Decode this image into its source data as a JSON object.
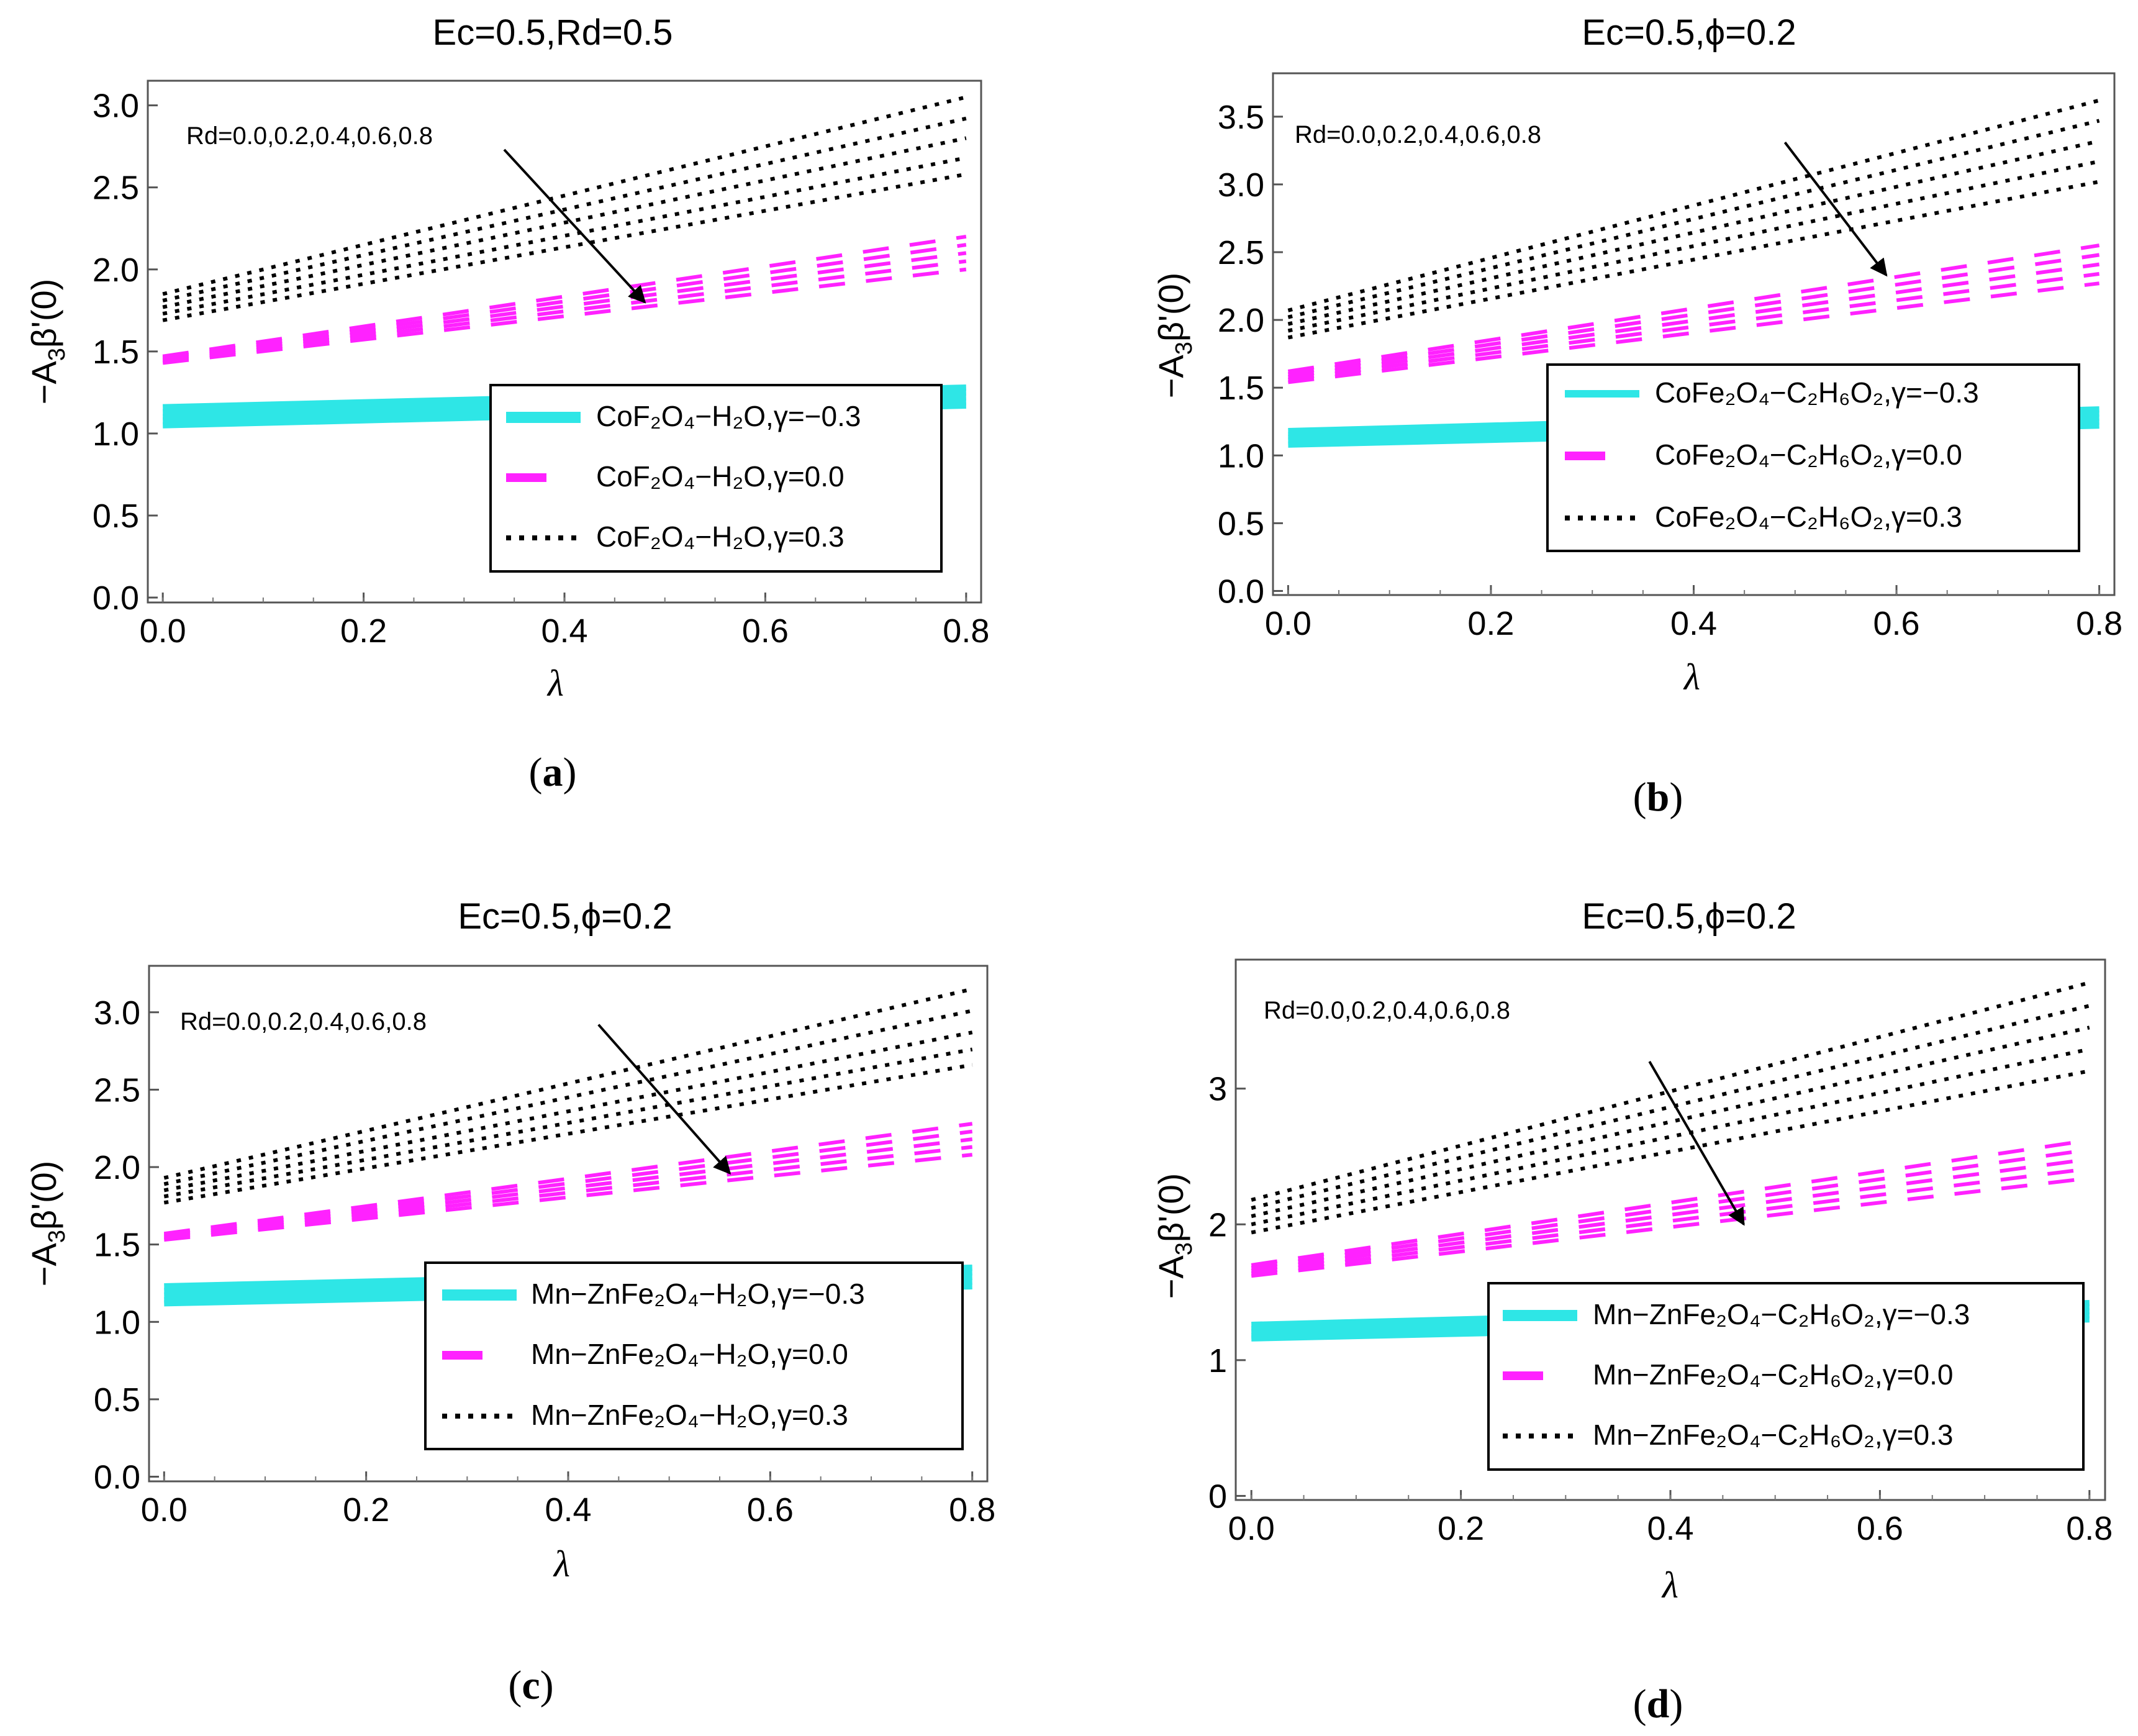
{
  "colors": {
    "cyan": "#2ee6e6",
    "magenta": "#ff22ff",
    "black": "#000000",
    "frame": "#555555"
  },
  "chart_data": [
    {
      "panel": "a",
      "caption_letter": "a",
      "type": "line",
      "title": "Ec=0.5,Rd=0.5",
      "xlabel": "λ",
      "ylabel_main": "−A",
      "ylabel_sub": "3",
      "ylabel_rest": "β'(0)",
      "xlim": [
        0,
        0.8
      ],
      "ylim": [
        -0.03,
        3.15
      ],
      "xticks": [
        0,
        0.2,
        0.4,
        0.6,
        0.8
      ],
      "xtick_labels": [
        "0.0",
        "0.2",
        "0.4",
        "0.6",
        "0.8"
      ],
      "yticks": [
        0,
        0.5,
        1,
        1.5,
        2,
        2.5,
        3
      ],
      "ytick_labels": [
        "0.0",
        "0.5",
        "1.0",
        "1.5",
        "2.0",
        "2.5",
        "3.0"
      ],
      "annotation": "Rd=0.0,0.2,0.4,0.6,0.8",
      "arrow": {
        "from": [
          0.34,
          2.73
        ],
        "to": [
          0.48,
          1.8
        ]
      },
      "legend_placement": "bottom-right",
      "legend": [
        {
          "style": "solid",
          "label": "CoF₂O₄−H₂O,γ=−0.3"
        },
        {
          "style": "dashed",
          "label": "CoF₂O₄−H₂O,γ=0.0"
        },
        {
          "style": "dotted",
          "label": "CoF₂O₄−H₂O,γ=0.3"
        }
      ],
      "rd_values": [
        0.0,
        0.2,
        0.4,
        0.6,
        0.8
      ],
      "series": [
        {
          "name": "γ=−0.3",
          "style": "solid",
          "x": [
            0,
            0.8
          ],
          "rd_curves": [
            [
              1.16,
              1.28
            ],
            [
              1.13,
              1.25
            ],
            [
              1.1,
              1.22
            ],
            [
              1.08,
              1.19
            ],
            [
              1.05,
              1.17
            ]
          ]
        },
        {
          "name": "γ=0.0",
          "style": "dashed",
          "x": [
            0,
            0.8
          ],
          "rd_curves": [
            [
              1.47,
              2.2
            ],
            [
              1.46,
              2.15
            ],
            [
              1.45,
              2.1
            ],
            [
              1.44,
              2.05
            ],
            [
              1.43,
              2.0
            ]
          ]
        },
        {
          "name": "γ=0.3",
          "style": "dotted",
          "x": [
            0,
            0.8
          ],
          "rd_curves": [
            [
              1.85,
              3.05
            ],
            [
              1.81,
              2.92
            ],
            [
              1.77,
              2.8
            ],
            [
              1.73,
              2.68
            ],
            [
              1.69,
              2.58
            ]
          ]
        }
      ]
    },
    {
      "panel": "b",
      "caption_letter": "b",
      "type": "line",
      "title": "Ec=0.5,ϕ=0.2",
      "xlabel": "λ",
      "ylabel_main": "−A",
      "ylabel_sub": "3",
      "ylabel_rest": "β'(0)",
      "xlim": [
        0,
        0.8
      ],
      "ylim": [
        -0.03,
        3.82
      ],
      "xticks": [
        0,
        0.2,
        0.4,
        0.6,
        0.8
      ],
      "xtick_labels": [
        "0.0",
        "0.2",
        "0.4",
        "0.6",
        "0.8"
      ],
      "yticks": [
        0,
        0.5,
        1,
        1.5,
        2,
        2.5,
        3,
        3.5
      ],
      "ytick_labels": [
        "0.0",
        "0.5",
        "1.0",
        "1.5",
        "2.0",
        "2.5",
        "3.0",
        "3.5"
      ],
      "annotation": "Rd=0.0,0.2,0.4,0.6,0.8",
      "arrow": {
        "from": [
          0.49,
          3.31
        ],
        "to": [
          0.59,
          2.33
        ]
      },
      "legend_placement": "bottom-right",
      "legend": [
        {
          "style": "solid",
          "label": "CoFe₂O₄−C₂H₆O₂,γ=−0.3"
        },
        {
          "style": "dashed",
          "label": "CoFe₂O₄−C₂H₆O₂,γ=0.0"
        },
        {
          "style": "dotted",
          "label": "CoFe₂O₄−C₂H₆O₂,γ=0.3"
        }
      ],
      "rd_values": [
        0.0,
        0.2,
        0.4,
        0.6,
        0.8
      ],
      "series": [
        {
          "name": "γ=−0.3",
          "style": "solid",
          "x": [
            0,
            0.8
          ],
          "rd_curves": [
            [
              1.18,
              1.34
            ],
            [
              1.15,
              1.31
            ],
            [
              1.13,
              1.28
            ],
            [
              1.11,
              1.25
            ],
            [
              1.08,
              1.22
            ]
          ]
        },
        {
          "name": "γ=0.0",
          "style": "dashed",
          "x": [
            0,
            0.8
          ],
          "rd_curves": [
            [
              1.62,
              2.55
            ],
            [
              1.6,
              2.48
            ],
            [
              1.58,
              2.41
            ],
            [
              1.56,
              2.34
            ],
            [
              1.54,
              2.27
            ]
          ]
        },
        {
          "name": "γ=0.3",
          "style": "dotted",
          "x": [
            0,
            0.8
          ],
          "rd_curves": [
            [
              2.07,
              3.62
            ],
            [
              2.02,
              3.47
            ],
            [
              1.97,
              3.32
            ],
            [
              1.92,
              3.17
            ],
            [
              1.87,
              3.02
            ]
          ]
        }
      ]
    },
    {
      "panel": "c",
      "caption_letter": "c",
      "type": "line",
      "title": "Ec=0.5,ϕ=0.2",
      "xlabel": "λ",
      "ylabel_main": "−A",
      "ylabel_sub": "3",
      "ylabel_rest": "β'(0)",
      "xlim": [
        0,
        0.8
      ],
      "ylim": [
        -0.03,
        3.3
      ],
      "xticks": [
        0,
        0.2,
        0.4,
        0.6,
        0.8
      ],
      "xtick_labels": [
        "0.0",
        "0.2",
        "0.4",
        "0.6",
        "0.8"
      ],
      "yticks": [
        0,
        0.5,
        1,
        1.5,
        2,
        2.5,
        3
      ],
      "ytick_labels": [
        "0.0",
        "0.5",
        "1.0",
        "1.5",
        "2.0",
        "2.5",
        "3.0"
      ],
      "annotation": "Rd=0.0,0.2,0.4,0.6,0.8",
      "arrow": {
        "from": [
          0.43,
          2.92
        ],
        "to": [
          0.56,
          1.96
        ]
      },
      "legend_placement": "bottom-right",
      "legend": [
        {
          "style": "solid",
          "label": "Mn−ZnFe₂O₄−H₂O,γ=−0.3"
        },
        {
          "style": "dashed",
          "label": "Mn−ZnFe₂O₄−H₂O,γ=0.0"
        },
        {
          "style": "dotted",
          "label": "Mn−ZnFe₂O₄−H₂O,γ=0.3"
        }
      ],
      "rd_values": [
        0.0,
        0.2,
        0.4,
        0.6,
        0.8
      ],
      "series": [
        {
          "name": "γ=−0.3",
          "style": "solid",
          "x": [
            0,
            0.8
          ],
          "rd_curves": [
            [
              1.23,
              1.35
            ],
            [
              1.2,
              1.32
            ],
            [
              1.17,
              1.29
            ],
            [
              1.14,
              1.26
            ],
            [
              1.12,
              1.23
            ]
          ]
        },
        {
          "name": "γ=0.0",
          "style": "dashed",
          "x": [
            0,
            0.8
          ],
          "rd_curves": [
            [
              1.57,
              2.28
            ],
            [
              1.56,
              2.23
            ],
            [
              1.55,
              2.18
            ],
            [
              1.54,
              2.13
            ],
            [
              1.53,
              2.08
            ]
          ]
        },
        {
          "name": "γ=0.3",
          "style": "dotted",
          "x": [
            0,
            0.8
          ],
          "rd_curves": [
            [
              1.93,
              3.15
            ],
            [
              1.89,
              3.01
            ],
            [
              1.85,
              2.87
            ],
            [
              1.81,
              2.76
            ],
            [
              1.77,
              2.66
            ]
          ]
        }
      ]
    },
    {
      "panel": "d",
      "caption_letter": "d",
      "type": "line",
      "title": "Ec=0.5,ϕ=0.2",
      "xlabel": "λ",
      "ylabel_main": "−A",
      "ylabel_sub": "3",
      "ylabel_rest": "β'(0)",
      "xlim": [
        0,
        0.8
      ],
      "ylim": [
        -0.03,
        3.95
      ],
      "xticks": [
        0,
        0.2,
        0.4,
        0.6,
        0.8
      ],
      "xtick_labels": [
        "0.0",
        "0.2",
        "0.4",
        "0.6",
        "0.8"
      ],
      "yticks": [
        0,
        1,
        2,
        3
      ],
      "ytick_labels": [
        "0",
        "1",
        "2",
        "3"
      ],
      "annotation": "Rd=0.0,0.2,0.4,0.6,0.8",
      "arrow": {
        "from": [
          0.38,
          3.2
        ],
        "to": [
          0.47,
          2.0
        ]
      },
      "legend_placement": "bottom-right",
      "legend": [
        {
          "style": "solid",
          "label": "Mn−ZnFe₂O₄−C₂H₆O₂,γ=−0.3"
        },
        {
          "style": "dashed",
          "label": "Mn−ZnFe₂O₄−C₂H₆O₂,γ=0.0"
        },
        {
          "style": "dotted",
          "label": "Mn−ZnFe₂O₄−C₂H₆O₂,γ=0.3"
        }
      ],
      "rd_values": [
        0.0,
        0.2,
        0.4,
        0.6,
        0.8
      ],
      "series": [
        {
          "name": "γ=−0.3",
          "style": "solid",
          "x": [
            0,
            0.8
          ],
          "rd_curves": [
            [
              1.26,
              1.42
            ],
            [
              1.23,
              1.39
            ],
            [
              1.21,
              1.36
            ],
            [
              1.18,
              1.33
            ],
            [
              1.16,
              1.3
            ]
          ]
        },
        {
          "name": "γ=0.0",
          "style": "dashed",
          "x": [
            0,
            0.8
          ],
          "rd_curves": [
            [
              1.7,
              2.62
            ],
            [
              1.68,
              2.55
            ],
            [
              1.66,
              2.48
            ],
            [
              1.64,
              2.41
            ],
            [
              1.62,
              2.34
            ]
          ]
        },
        {
          "name": "γ=0.3",
          "style": "dotted",
          "x": [
            0,
            0.8
          ],
          "rd_curves": [
            [
              2.18,
              3.78
            ],
            [
              2.12,
              3.61
            ],
            [
              2.06,
              3.45
            ],
            [
              2.0,
              3.29
            ],
            [
              1.94,
              3.13
            ]
          ]
        }
      ]
    }
  ]
}
